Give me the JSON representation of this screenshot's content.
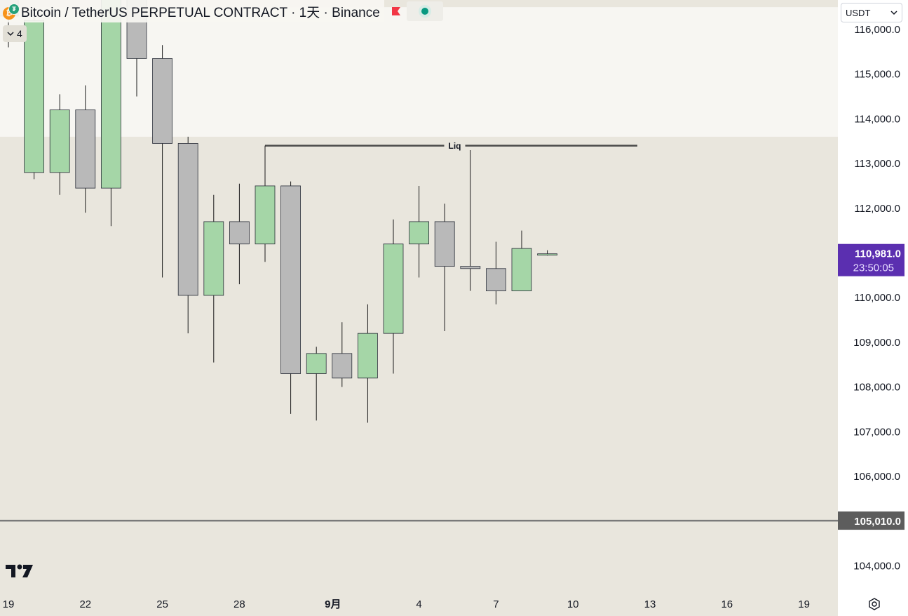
{
  "header": {
    "base_asset": "Bitcoin",
    "separator": "/",
    "quote_asset": "TetherUS PERPETUAL CONTRACT",
    "interval": "1天",
    "exchange": "Binance",
    "middot": "·",
    "base_icon_label": "₿",
    "quote_icon_label": "₮",
    "flag_color": "#f23645",
    "status_color": "#089981"
  },
  "indicator_chip": {
    "count": "4",
    "icon": "chevron-down-icon"
  },
  "currency_select": {
    "value": "USDT",
    "icon": "chevron-down-icon"
  },
  "colors": {
    "background": "#e9e6dd",
    "zone": "#f7f6f2",
    "up_body": "#a5d6a7",
    "down_body": "#b9b9b9",
    "candle_border": "#2a2e39",
    "price_label_bg": "#5b2fb0",
    "line_label_bg": "#5d5d5d",
    "liq_line": "#4a4a4a"
  },
  "chart_data": {
    "type": "candlestick",
    "title": "Bitcoin / TetherUS PERPETUAL CONTRACT · 1天 · Binance",
    "ylim": [
      103500,
      116500
    ],
    "grid": false,
    "x_tick_labels": [
      "19",
      "22",
      "25",
      "28",
      "9月",
      "4",
      "7",
      "10",
      "13",
      "16",
      "19"
    ],
    "y_tick_labels": [
      "116,000.0",
      "115,000.0",
      "114,000.0",
      "113,000.0",
      "112,000.0",
      "111,000.0",
      "110,000.0",
      "109,000.0",
      "108,000.0",
      "107,000.0",
      "106,000.0",
      "105,000.0",
      "104,000.0"
    ],
    "y_tick_values": [
      116000,
      115000,
      114000,
      113000,
      112000,
      111000,
      110000,
      109000,
      108000,
      107000,
      106000,
      105000,
      104000
    ],
    "date_start": "2025-08-19",
    "candles": [
      {
        "date": "2025-08-19",
        "open": 116800,
        "high": 117100,
        "low": 115600,
        "close": 116300
      },
      {
        "date": "2025-08-20",
        "open": 112800,
        "high": 116300,
        "low": 112650,
        "close": 116200
      },
      {
        "date": "2025-08-21",
        "open": 112800,
        "high": 114550,
        "low": 112300,
        "close": 114200
      },
      {
        "date": "2025-08-22",
        "open": 114200,
        "high": 114750,
        "low": 111900,
        "close": 112450
      },
      {
        "date": "2025-08-23",
        "open": 112450,
        "high": 117400,
        "low": 111600,
        "close": 116900
      },
      {
        "date": "2025-08-24",
        "open": 116900,
        "high": 117300,
        "low": 114500,
        "close": 115350
      },
      {
        "date": "2025-08-25",
        "open": 115350,
        "high": 115650,
        "low": 110450,
        "close": 113450
      },
      {
        "date": "2025-08-26",
        "open": 113450,
        "high": 113600,
        "low": 109200,
        "close": 110050
      },
      {
        "date": "2025-08-27",
        "open": 110050,
        "high": 112300,
        "low": 108550,
        "close": 111700
      },
      {
        "date": "2025-08-28",
        "open": 111700,
        "high": 112550,
        "low": 110300,
        "close": 111200
      },
      {
        "date": "2025-08-29",
        "open": 111200,
        "high": 113400,
        "low": 110800,
        "close": 112500
      },
      {
        "date": "2025-08-30",
        "open": 112500,
        "high": 112600,
        "low": 107400,
        "close": 108300
      },
      {
        "date": "2025-08-31",
        "open": 108300,
        "high": 108900,
        "low": 107250,
        "close": 108750
      },
      {
        "date": "2025-09-01",
        "open": 108750,
        "high": 109450,
        "low": 108000,
        "close": 108200
      },
      {
        "date": "2025-09-02",
        "open": 108200,
        "high": 109850,
        "low": 107200,
        "close": 109200
      },
      {
        "date": "2025-09-03",
        "open": 109200,
        "high": 111750,
        "low": 108300,
        "close": 111200
      },
      {
        "date": "2025-09-04",
        "open": 111200,
        "high": 112500,
        "low": 110450,
        "close": 111700
      },
      {
        "date": "2025-09-05",
        "open": 111700,
        "high": 112100,
        "low": 109250,
        "close": 110700
      },
      {
        "date": "2025-09-06",
        "open": 110700,
        "high": 113300,
        "low": 110150,
        "close": 110650
      },
      {
        "date": "2025-09-07",
        "open": 110650,
        "high": 111250,
        "low": 109850,
        "close": 110150
      },
      {
        "date": "2025-09-08",
        "open": 110150,
        "high": 111500,
        "low": 110150,
        "close": 111100
      },
      {
        "date": "2025-09-09",
        "open": 110981,
        "high": 111060,
        "low": 110940,
        "close": 110981
      }
    ],
    "zones": [
      {
        "from": 113600,
        "to": 116500,
        "color": "#f7f6f2"
      }
    ],
    "liq_line": {
      "label": "Liq",
      "price": 113400,
      "start_date": "2025-08-29",
      "end_date": "2025-09-13"
    },
    "horizontal_lines": [
      {
        "price": 105010,
        "label": "105,010.0"
      }
    ],
    "last_price": {
      "price": 110981,
      "label": "110,981.0",
      "countdown": "23:50:05"
    }
  }
}
